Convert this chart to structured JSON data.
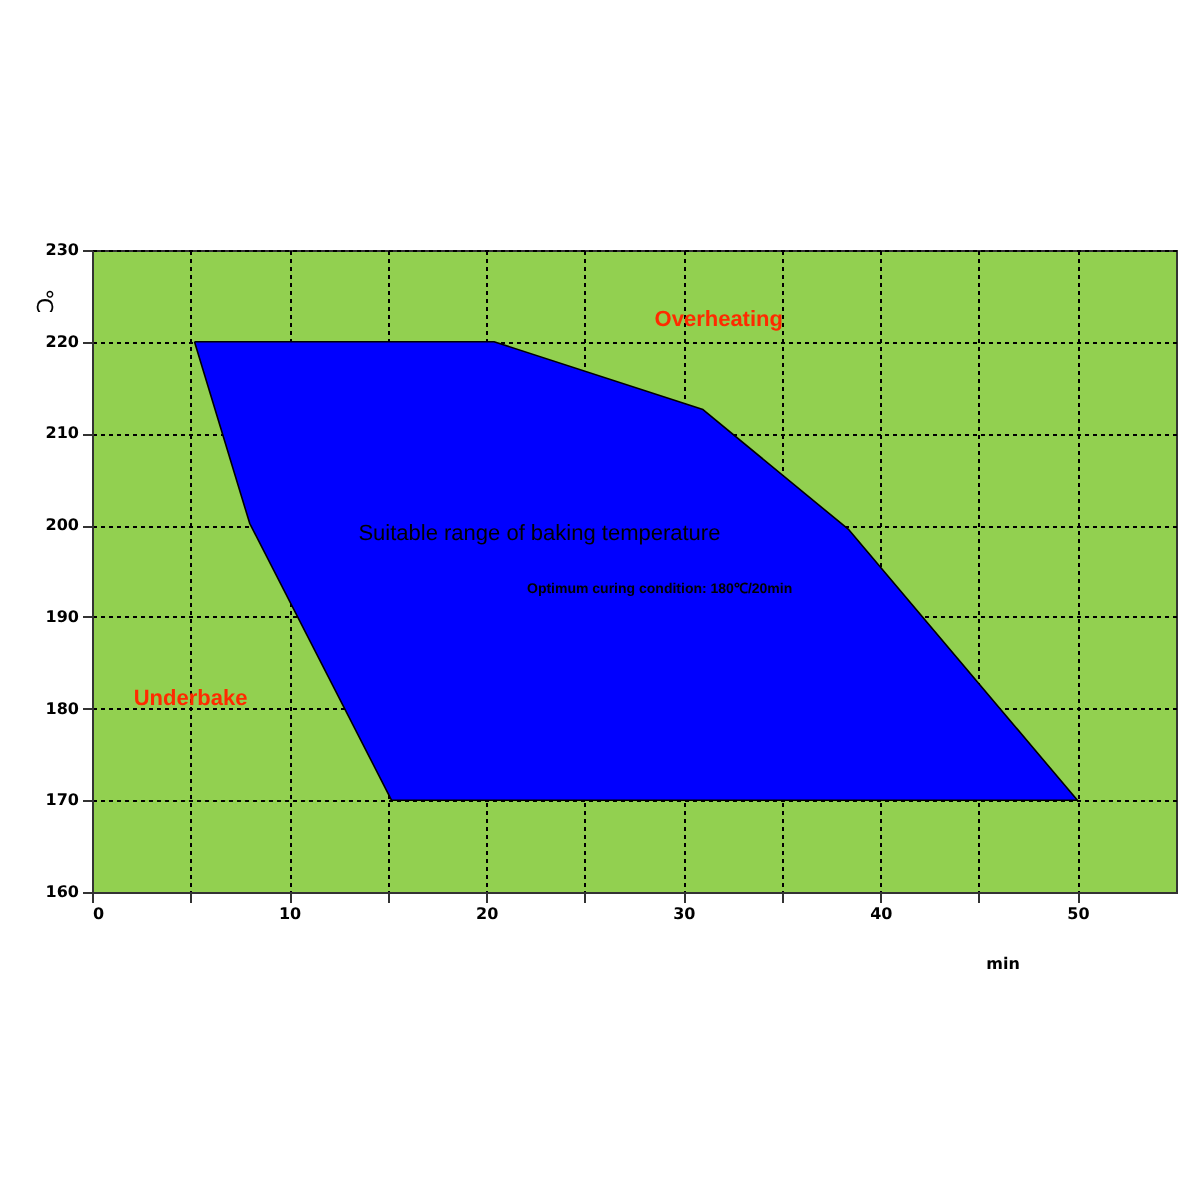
{
  "chart_data": {
    "type": "area",
    "xlabel": "min",
    "ylabel": "℃",
    "series": [
      {
        "color": "#0000ff",
        "x": [
          5.2,
          20.4,
          31,
          38.4,
          50,
          15.2,
          8,
          5.2
        ],
        "values": [
          220,
          220,
          212.6,
          199.5,
          170,
          170,
          200.2,
          220
        ]
      }
    ],
    "xlim": [
      0,
      55
    ],
    "xticks": [
      0,
      {
        "value": 5,
        "label": null
      },
      10,
      {
        "value": 15,
        "label": null
      },
      20,
      {
        "value": 25,
        "label": null
      },
      30,
      {
        "value": 35,
        "label": null
      },
      40,
      {
        "value": 45,
        "label": null
      },
      50
    ],
    "ylim": [
      160,
      230
    ],
    "yticks": [
      160,
      170,
      180,
      190,
      200,
      210,
      220,
      230
    ],
    "grid": true,
    "annotations": [
      "Overheating",
      "Underbake",
      "Suitable range of baking temperature",
      "Optimum curing condition: 180℃/20min"
    ]
  }
}
